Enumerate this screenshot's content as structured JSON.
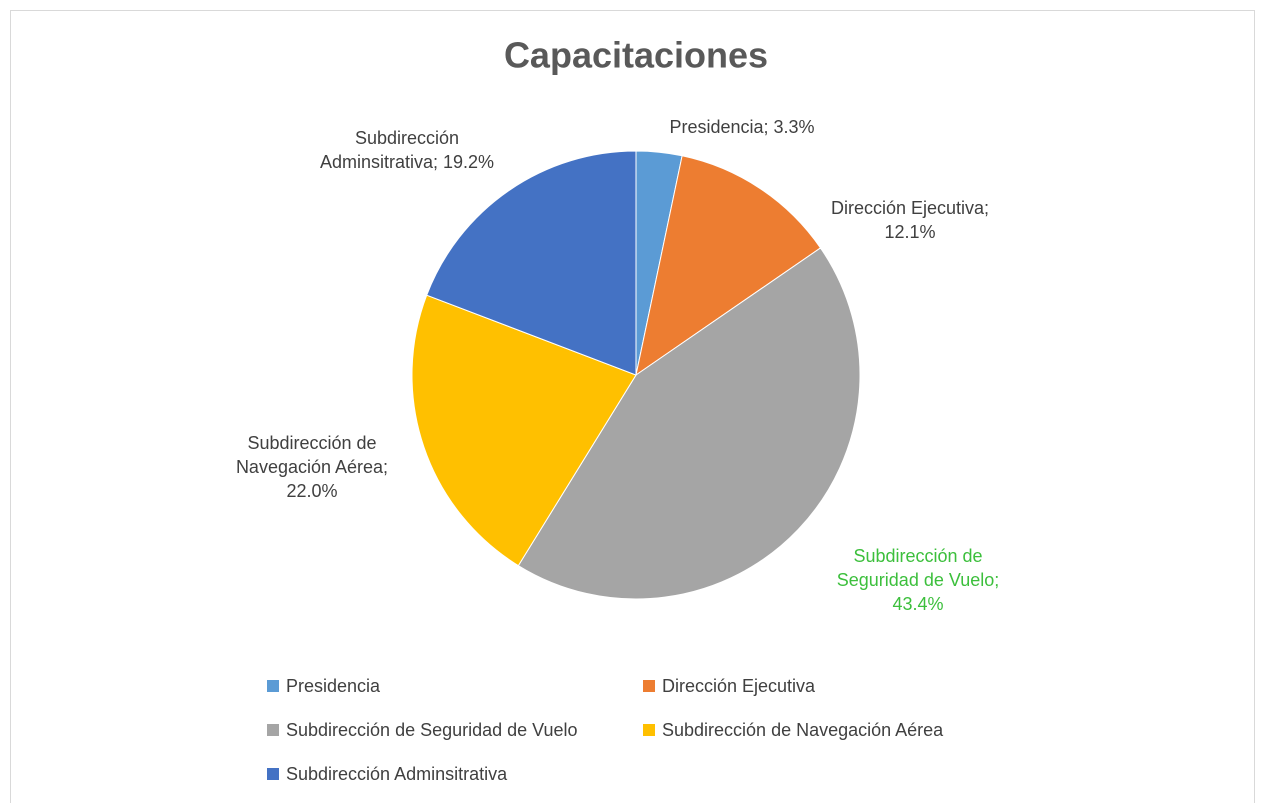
{
  "chart_data": {
    "type": "pie",
    "title": "Capacitaciones",
    "categories": [
      "Presidencia",
      "Dirección Ejecutiva",
      "Subdirección de Seguridad de Vuelo",
      "Subdirección de Navegación Aérea",
      "Subdirección Adminsitrativa"
    ],
    "values": [
      3.3,
      12.1,
      43.4,
      22.0,
      19.2
    ],
    "value_labels": [
      "Presidencia; 3.3%",
      "Dirección Ejecutiva; 12.1%",
      "Subdirección de Seguridad de Vuelo; 43.4%",
      "Subdirección de Navegación Aérea; 22.0%",
      "Subdirección Adminsitrativa; 19.2%"
    ],
    "colors": [
      "#5b9bd5",
      "#ed7d31",
      "#a5a5a5",
      "#ffc000",
      "#4472c4"
    ],
    "label_colors": [
      "#404040",
      "#404040",
      "#3cbf3c",
      "#404040",
      "#404040"
    ],
    "legend": "bottom"
  }
}
